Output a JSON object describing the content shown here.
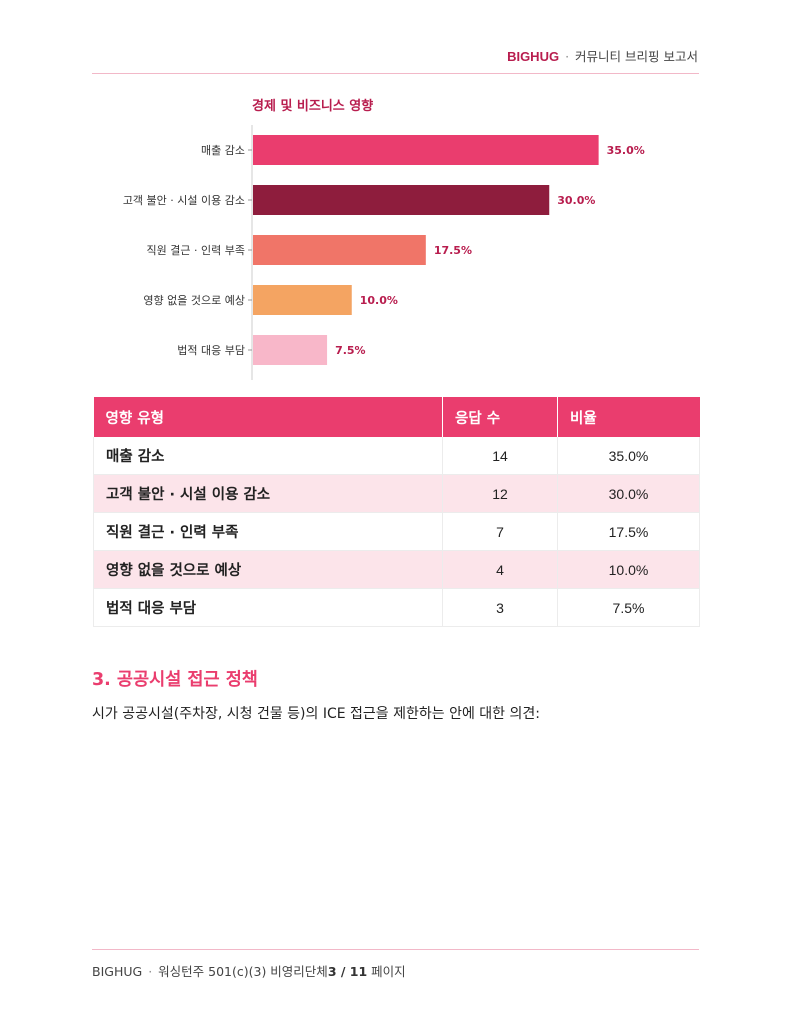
{
  "header": {
    "brand": "BIGHUG",
    "separator": "·",
    "title": "커뮤니티 브리핑 보고서"
  },
  "chart_data": {
    "type": "bar",
    "orientation": "horizontal",
    "title": "경제 및 비즈니스 영향",
    "categories": [
      "매출 감소",
      "고객 불안 · 시설 이용 감소",
      "직원 결근 · 인력 부족",
      "영향 없을 것으로 예상",
      "법적 대응 부담"
    ],
    "values": [
      35.0,
      30.0,
      17.5,
      10.0,
      7.5
    ],
    "labels": [
      "35.0%",
      "30.0%",
      "17.5%",
      "10.0%",
      "7.5%"
    ],
    "colors": [
      "#ea3d6e",
      "#8e1d3d",
      "#f07568",
      "#f4a462",
      "#f8b7c9"
    ],
    "xlim": [
      0,
      40
    ],
    "grid": false
  },
  "table": {
    "headers": [
      "영향 유형",
      "응답 수",
      "비율"
    ],
    "rows": [
      [
        "매출 감소",
        "14",
        "35.0%"
      ],
      [
        "고객 불안 · 시설 이용 감소",
        "12",
        "30.0%"
      ],
      [
        "직원 결근 · 인력 부족",
        "7",
        "17.5%"
      ],
      [
        "영향 없을 것으로 예상",
        "4",
        "10.0%"
      ],
      [
        "법적 대응 부담",
        "3",
        "7.5%"
      ]
    ]
  },
  "section": {
    "title": "3. 공공시설 접근 정책",
    "body": "시가 공공시설(주차장, 시청 건물 등)의 ICE 접근을 제한하는 안에 대한 의견:"
  },
  "footer": {
    "brand": "BIGHUG",
    "separator": "·",
    "text": "워싱턴주 501(c)(3) 비영리단체",
    "page": "3 / 11",
    "page_suffix": "페이지"
  }
}
